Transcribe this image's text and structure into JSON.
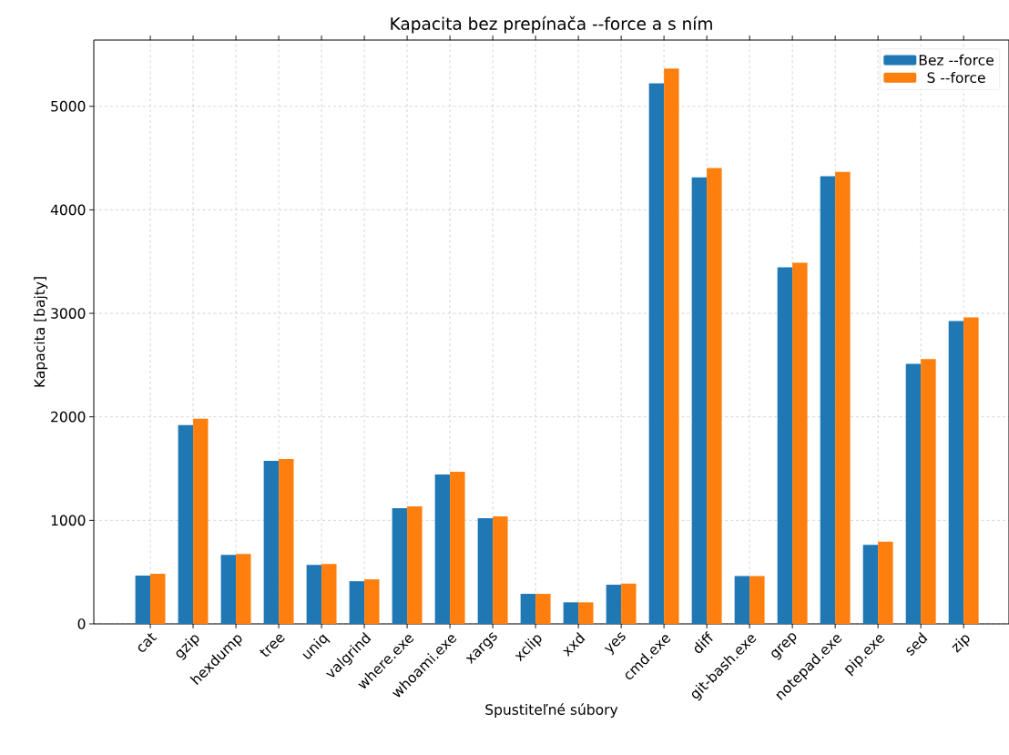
{
  "chart_data": {
    "type": "bar",
    "title": "Kapacita bez prepínača --force a s ním",
    "xlabel": "Spustiteľné súbory",
    "ylabel": "Kapacita [bajty]",
    "categories": [
      "cat",
      "gzip",
      "hexdump",
      "tree",
      "uniq",
      "valgrind",
      "where.exe",
      "whoami.exe",
      "xargs",
      "xclip",
      "xxd",
      "yes",
      "cmd.exe",
      "diff",
      "git-bash.exe",
      "grep",
      "notepad.exe",
      "pip.exe",
      "sed",
      "zip"
    ],
    "series": [
      {
        "name": "Bez --force",
        "color": "#1f77b4",
        "values": [
          466,
          1920,
          667,
          1575,
          570,
          412,
          1117,
          1443,
          1020,
          290,
          208,
          378,
          5222,
          4314,
          463,
          3445,
          4325,
          763,
          2512,
          2926
        ]
      },
      {
        "name": "S --force",
        "color": "#ff7f0e",
        "values": [
          483,
          1981,
          676,
          1593,
          579,
          430,
          1135,
          1469,
          1038,
          290,
          208,
          389,
          5364,
          4403,
          463,
          3488,
          4367,
          795,
          2558,
          2961
        ]
      }
    ],
    "ylim": [
      0,
      5640
    ],
    "yticks": [
      0,
      1000,
      2000,
      3000,
      4000,
      5000
    ],
    "grid": true,
    "legend": "top right"
  }
}
